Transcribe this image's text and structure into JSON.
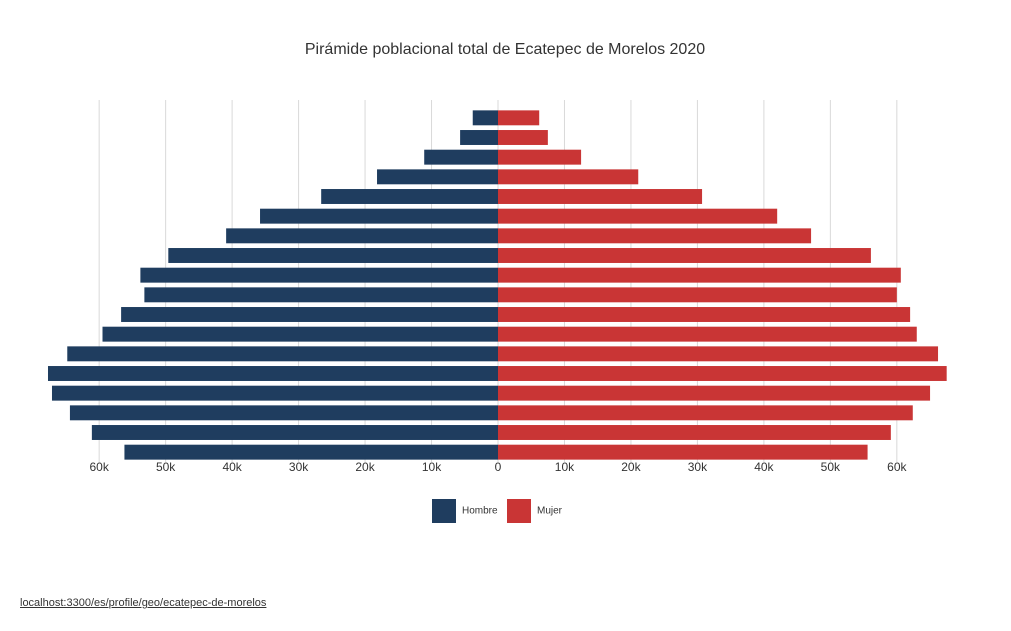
{
  "chart_data": {
    "type": "pyramid",
    "title": "Pirámide poblacional total de Ecatepec de Morelos 2020",
    "series": [
      {
        "name": "Hombre",
        "color": "#1f3d5f",
        "values": [
          -3800,
          -5700,
          -11100,
          -18200,
          -26600,
          -35800,
          -40900,
          -49600,
          -53800,
          -53200,
          -56700,
          -59500,
          -64800,
          -67700,
          -67100,
          -64400,
          -61100,
          -56200
        ]
      },
      {
        "name": "Mujer",
        "color": "#c93535",
        "values": [
          6200,
          7500,
          12500,
          21100,
          30700,
          42000,
          47100,
          56100,
          60600,
          60000,
          62000,
          63000,
          66200,
          67500,
          65000,
          62400,
          59100,
          55600
        ]
      }
    ],
    "xlim": [
      -68000,
      68000
    ],
    "xticks": [
      {
        "value": -60000,
        "label": "60k"
      },
      {
        "value": -50000,
        "label": "50k"
      },
      {
        "value": -40000,
        "label": "40k"
      },
      {
        "value": -30000,
        "label": "30k"
      },
      {
        "value": -20000,
        "label": "20k"
      },
      {
        "value": -10000,
        "label": "10k"
      },
      0,
      {
        "value": 10000,
        "label": "10k"
      },
      {
        "value": 20000,
        "label": "20k"
      },
      {
        "value": 30000,
        "label": "30k"
      },
      {
        "value": 40000,
        "label": "40k"
      },
      {
        "value": 50000,
        "label": "50k"
      },
      {
        "value": 60000,
        "label": "60k"
      }
    ],
    "grid": true
  },
  "source_link": "localhost:3300/es/profile/geo/ecatepec-de-morelos"
}
